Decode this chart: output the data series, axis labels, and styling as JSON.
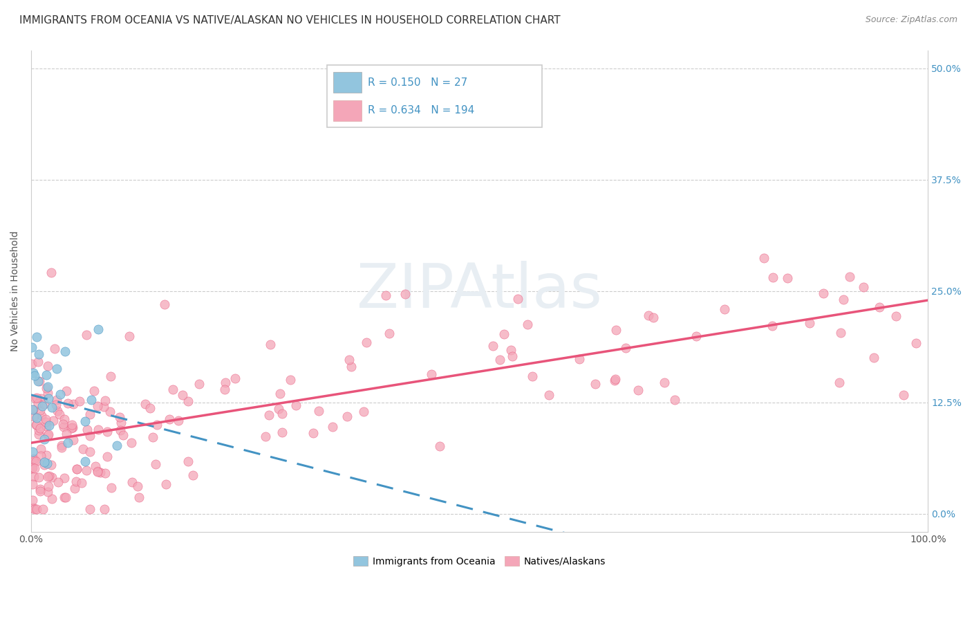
{
  "title": "IMMIGRANTS FROM OCEANIA VS NATIVE/ALASKAN NO VEHICLES IN HOUSEHOLD CORRELATION CHART",
  "source": "Source: ZipAtlas.com",
  "ylabel": "No Vehicles in Household",
  "ytick_vals": [
    0.0,
    12.5,
    25.0,
    37.5,
    50.0
  ],
  "xlim": [
    0,
    100
  ],
  "ylim": [
    -2,
    52
  ],
  "legend1_label": "Immigrants from Oceania",
  "legend2_label": "Natives/Alaskans",
  "r1": "0.150",
  "n1": "27",
  "r2": "0.634",
  "n2": "194",
  "blue_color": "#92c5de",
  "pink_color": "#f4a6b8",
  "blue_line_color": "#4393c3",
  "pink_line_color": "#e8547a",
  "right_tick_color": "#4393c3",
  "bg_color": "#ffffff",
  "watermark_color": "#e8eef3",
  "title_fontsize": 11,
  "source_fontsize": 9
}
